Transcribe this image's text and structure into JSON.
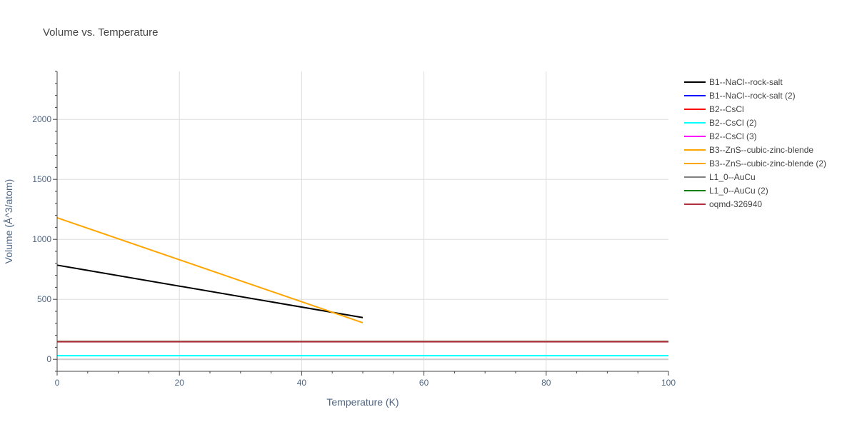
{
  "chart_data": {
    "type": "line",
    "title": "Volume vs. Temperature",
    "xlabel": "Temperature (K)",
    "ylabel": "Volume (Å^3/atom)",
    "xlim": [
      0,
      100
    ],
    "ylim": [
      -100,
      2400
    ],
    "xticks": [
      0,
      20,
      40,
      60,
      80,
      100
    ],
    "yticks": [
      0,
      500,
      1000,
      1500,
      2000
    ],
    "grid": true,
    "legend_position": "top-right",
    "series": [
      {
        "name": "B1--NaCl--rock-salt",
        "color": "#000000",
        "x": [
          0,
          50
        ],
        "y": [
          785,
          348
        ]
      },
      {
        "name": "B1--NaCl--rock-salt (2)",
        "color": "#0000ff",
        "x": [
          0,
          100
        ],
        "y": [
          148,
          148
        ]
      },
      {
        "name": "B2--CsCl",
        "color": "#ff0000",
        "x": [
          0,
          100
        ],
        "y": [
          148,
          148
        ]
      },
      {
        "name": "B2--CsCl (2)",
        "color": "#00ffff",
        "x": [
          0,
          100
        ],
        "y": [
          30,
          30
        ]
      },
      {
        "name": "B2--CsCl (3)",
        "color": "#ff00ff",
        "x": [
          0,
          100
        ],
        "y": [
          150,
          150
        ]
      },
      {
        "name": "B3--ZnS--cubic-zinc-blende",
        "color": "#ffa500",
        "x": [
          0,
          50
        ],
        "y": [
          1180,
          305
        ]
      },
      {
        "name": "B3--ZnS--cubic-zinc-blende (2)",
        "color": "#ffa500",
        "x": [
          0,
          100
        ],
        "y": [
          150,
          150
        ]
      },
      {
        "name": "L1_0--AuCu",
        "color": "#808080",
        "x": [
          0,
          100
        ],
        "y": [
          149,
          149
        ]
      },
      {
        "name": "L1_0--AuCu (2)",
        "color": "#008000",
        "x": [
          0,
          100
        ],
        "y": [
          147,
          147
        ]
      },
      {
        "name": "oqmd-326940",
        "color": "#b03040",
        "x": [
          0,
          100
        ],
        "y": [
          146,
          146
        ]
      }
    ]
  }
}
